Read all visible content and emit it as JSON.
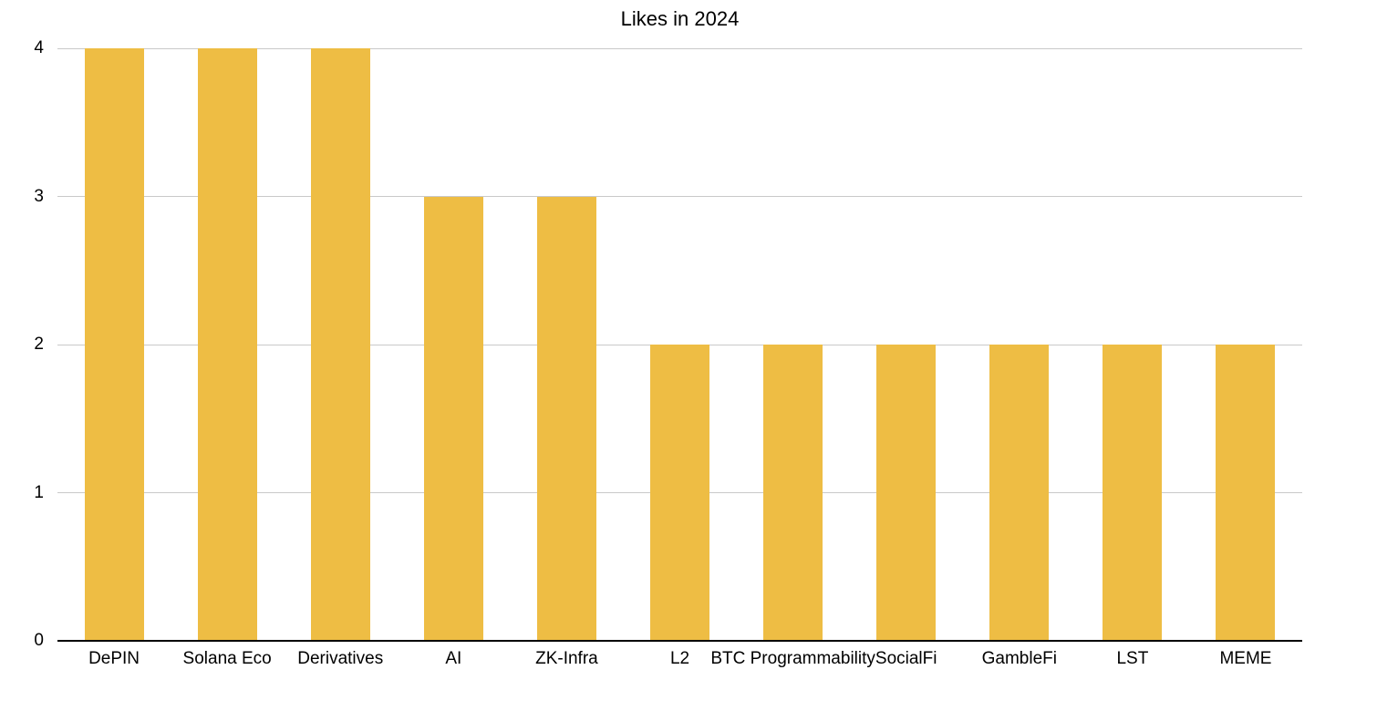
{
  "chart_data": {
    "type": "bar",
    "title": "Likes in 2024",
    "categories": [
      "DePIN",
      "Solana Eco",
      "Derivatives",
      "AI",
      "ZK-Infra",
      "L2",
      "BTC Programmability",
      "SocialFi",
      "GambleFi",
      "LST",
      "MEME"
    ],
    "values": [
      4,
      4,
      4,
      3,
      3,
      2,
      2,
      2,
      2,
      2,
      2
    ],
    "xlabel": "",
    "ylabel": "",
    "y_ticks": [
      0,
      1,
      2,
      3,
      4
    ],
    "ylim": [
      0,
      4
    ],
    "grid": true,
    "legend": false
  },
  "colors": {
    "bar": "#EEBD44",
    "gridline": "#C9C9C9",
    "axis_line": "#000000",
    "text": "#000000",
    "background": "#FFFFFF"
  }
}
